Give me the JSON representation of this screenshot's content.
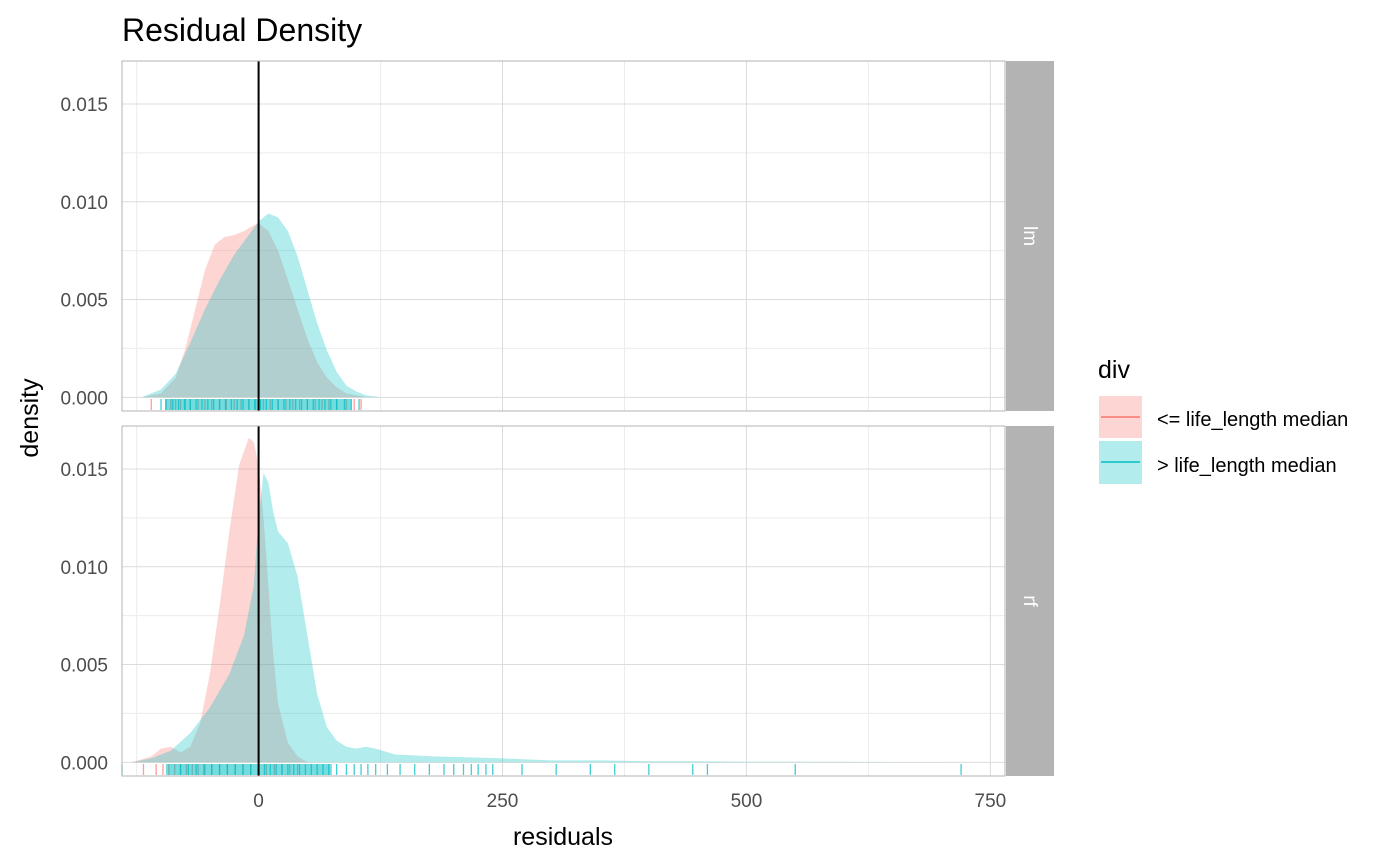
{
  "chart_data": {
    "type": "area",
    "title": "Residual Density",
    "xlabel": "residuals",
    "ylabel": "density",
    "xlim": [
      -140,
      765
    ],
    "ylim": [
      -0.0007,
      0.0172
    ],
    "x_ticks": [
      0,
      250,
      500,
      750
    ],
    "y_ticks": [
      0.0,
      0.005,
      0.01,
      0.015
    ],
    "x_tick_labels": [
      "0",
      "250",
      "500",
      "750"
    ],
    "y_tick_labels": [
      "0.000",
      "0.005",
      "0.010",
      "0.015"
    ],
    "reference_line_x": 0,
    "grid": true,
    "legend": {
      "title": "div",
      "position": "right",
      "entries": [
        "<= life_length median",
        "> life_length median"
      ]
    },
    "colors": {
      "low": "#F8766D",
      "high": "#00BFC4",
      "strip": "#b3b3b3",
      "grid": "#dcdcdc",
      "panel_border": "#b3b3b3"
    },
    "panels": [
      {
        "label": "lm",
        "series": [
          {
            "name": "<= life_length median",
            "x": [
              -120,
              -100,
              -85,
              -75,
              -65,
              -55,
              -45,
              -35,
              -25,
              -15,
              -5,
              0,
              10,
              20,
              30,
              40,
              50,
              60,
              70,
              80,
              90,
              100,
              110
            ],
            "y": [
              0.0,
              0.0002,
              0.001,
              0.0025,
              0.0045,
              0.0065,
              0.0078,
              0.0082,
              0.0083,
              0.0085,
              0.0088,
              0.0089,
              0.0085,
              0.0075,
              0.006,
              0.0045,
              0.003,
              0.0018,
              0.001,
              0.0005,
              0.0002,
              0.0001,
              0.0
            ]
          },
          {
            "name": "> life_length median",
            "x": [
              -120,
              -100,
              -85,
              -70,
              -55,
              -40,
              -25,
              -10,
              0,
              10,
              20,
              30,
              40,
              50,
              60,
              70,
              80,
              90,
              100,
              110,
              125
            ],
            "y": [
              0.0,
              0.0004,
              0.0012,
              0.0028,
              0.0045,
              0.006,
              0.0073,
              0.0083,
              0.009,
              0.0094,
              0.0092,
              0.0085,
              0.0072,
              0.0055,
              0.0038,
              0.0024,
              0.0013,
              0.0006,
              0.0003,
              0.0001,
              0.0
            ]
          }
        ],
        "rug_low": [
          -110,
          -95,
          -90,
          -85,
          -80,
          -75,
          -70,
          -62,
          -55,
          -48,
          -40,
          -33,
          -25,
          -18,
          -10,
          -3,
          5,
          12,
          20,
          28,
          35,
          42,
          50,
          58,
          65,
          72,
          80,
          90,
          98,
          105
        ],
        "rug_high": [
          -100,
          -95,
          -88,
          -82,
          -76,
          -70,
          -64,
          -58,
          -52,
          -46,
          -40,
          -34,
          -28,
          -22,
          -16,
          -10,
          -4,
          2,
          8,
          14,
          20,
          26,
          32,
          38,
          44,
          50,
          56,
          62,
          68,
          74,
          80,
          88,
          95,
          103
        ]
      },
      {
        "label": "rf",
        "series": [
          {
            "name": "<= life_length median",
            "x": [
              -130,
              -110,
              -100,
              -90,
              -80,
              -70,
              -60,
              -50,
              -40,
              -30,
              -20,
              -10,
              -5,
              0,
              5,
              10,
              15,
              20,
              30,
              40,
              50
            ],
            "y": [
              0.0,
              0.0003,
              0.0007,
              0.0008,
              0.0005,
              0.0008,
              0.002,
              0.0045,
              0.008,
              0.0118,
              0.0152,
              0.0166,
              0.0164,
              0.0152,
              0.0125,
              0.009,
              0.0055,
              0.003,
              0.001,
              0.0003,
              0.0
            ]
          },
          {
            "name": "> life_length median",
            "x": [
              -130,
              -110,
              -90,
              -70,
              -50,
              -30,
              -15,
              -5,
              0,
              5,
              10,
              15,
              20,
              30,
              40,
              50,
              60,
              70,
              80,
              90,
              100,
              110,
              120,
              140,
              180,
              250,
              300,
              350,
              400,
              450,
              500,
              550,
              600,
              650,
              700,
              730
            ],
            "y": [
              0.0,
              0.0002,
              0.0006,
              0.0015,
              0.0028,
              0.0045,
              0.0065,
              0.009,
              0.0125,
              0.0148,
              0.0143,
              0.0128,
              0.0118,
              0.0112,
              0.0095,
              0.0065,
              0.0035,
              0.0018,
              0.0011,
              0.0008,
              0.0007,
              0.0008,
              0.0007,
              0.0004,
              0.0003,
              0.0002,
              0.0001,
              0.0001,
              5e-05,
              5e-05,
              3e-05,
              3e-05,
              2e-05,
              1e-05,
              1e-05,
              0.0
            ]
          }
        ],
        "rug_low": [
          -118,
          -105,
          -98,
          -92,
          -86,
          -80,
          -74,
          -68,
          -62,
          -55,
          -48,
          -40,
          -32,
          -24,
          -16,
          -8,
          0,
          8,
          16,
          24,
          32,
          40
        ],
        "rug_high": [
          -140,
          -80,
          -72,
          -64,
          -56,
          -48,
          -40,
          -32,
          -24,
          -16,
          -8,
          0,
          6,
          12,
          18,
          24,
          30,
          36,
          42,
          48,
          54,
          60,
          66,
          72,
          80,
          90,
          98,
          105,
          112,
          120,
          132,
          145,
          160,
          175,
          190,
          200,
          210,
          218,
          225,
          233,
          240,
          270,
          305,
          340,
          365,
          400,
          445,
          460,
          550,
          720
        ]
      }
    ]
  }
}
